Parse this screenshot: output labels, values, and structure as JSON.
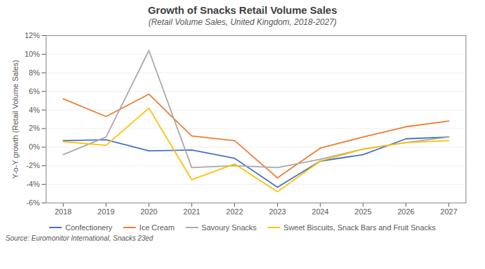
{
  "chart_data": {
    "type": "line",
    "title": "Growth of Snacks Retail Volume Sales",
    "subtitle": "(Retail Volume Sales, United Kingdom, 2018-2027)",
    "ylabel": "Y-o-Y growth (Retail Volume Sales)",
    "source": "Source: Euromonitor International, Snacks 23ed",
    "x": [
      2018,
      2019,
      2020,
      2021,
      2022,
      2023,
      2024,
      2025,
      2026,
      2027
    ],
    "series": [
      {
        "name": "Confectionery",
        "color": "#4472C4",
        "values": [
          0.7,
          0.8,
          -0.4,
          -0.3,
          -1.2,
          -4.3,
          -1.5,
          -0.8,
          0.9,
          1.1
        ]
      },
      {
        "name": "Ice Cream",
        "color": "#ED7D31",
        "values": [
          5.2,
          3.3,
          5.7,
          1.2,
          0.7,
          -3.3,
          -0.1,
          1.1,
          2.2,
          2.8
        ]
      },
      {
        "name": "Savoury Snacks",
        "color": "#A9A9A9",
        "values": [
          -0.8,
          1.1,
          10.4,
          -2.2,
          -2.0,
          -2.2,
          -1.3,
          -0.2,
          0.5,
          1.1
        ]
      },
      {
        "name": "Sweet Biscuits, Snack Bars and Fruit Snacks",
        "color": "#FFC000",
        "values": [
          0.6,
          0.2,
          4.2,
          -3.5,
          -1.8,
          -4.8,
          -1.5,
          -0.2,
          0.5,
          0.7
        ]
      }
    ],
    "xlim": [
      2017.6,
      2027.4
    ],
    "xticks": [
      2018,
      2019,
      2020,
      2021,
      2022,
      2023,
      2024,
      2025,
      2026,
      2027
    ],
    "ylim": [
      -6,
      12
    ],
    "yticks": [
      {
        "value": -6,
        "label": "-6%"
      },
      {
        "value": -4,
        "label": "-4%"
      },
      {
        "value": -2,
        "label": "-2%"
      },
      {
        "value": 0,
        "label": "0%"
      },
      {
        "value": 2,
        "label": "2%"
      },
      {
        "value": 4,
        "label": "4%"
      },
      {
        "value": 6,
        "label": "6%"
      },
      {
        "value": 8,
        "label": "8%"
      },
      {
        "value": 10,
        "label": "10%"
      },
      {
        "value": 12,
        "label": "12%"
      }
    ],
    "grid": true,
    "legend": "bottom"
  }
}
